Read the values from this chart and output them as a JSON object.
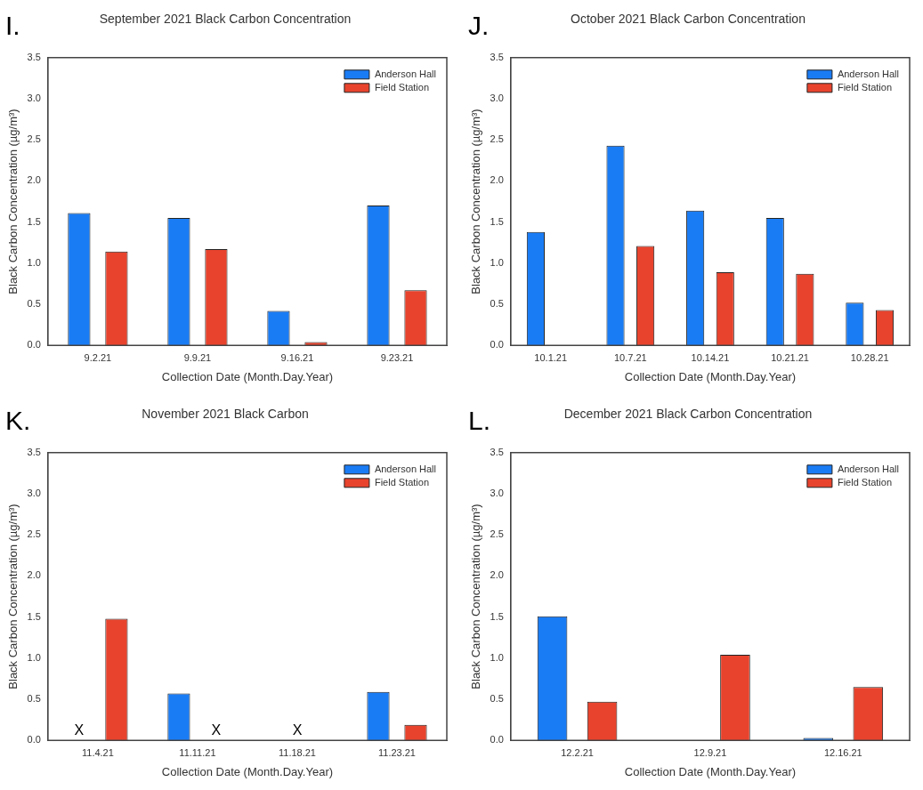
{
  "chart_data": [
    {
      "type": "bar",
      "title": "September 2021 Black Carbon Concentration",
      "xlabel": "Collection Date (Month.Day.Year)",
      "ylabel": "Black Carbon Concentration (µg/m³)",
      "annotations": [
        "I."
      ],
      "categories": [
        "9.2.21",
        "9.9.21",
        "9.16.21",
        "9.23.21"
      ],
      "series": [
        {
          "name": "Anderson Hall",
          "color": "#1a7cf5",
          "values": [
            1.61,
            1.55,
            0.42,
            1.7
          ]
        },
        {
          "name": "Field Station",
          "color": "#e8432d",
          "values": [
            1.14,
            1.17,
            0.04,
            0.67
          ]
        }
      ],
      "ylim": [
        0,
        3.5
      ],
      "yticks": [
        {
          "value": 0,
          "label": "0.0"
        },
        {
          "value": 0.5,
          "label": "0.5"
        },
        {
          "value": 1,
          "label": "1.0"
        },
        {
          "value": 1.5,
          "label": "1.5"
        },
        {
          "value": 2,
          "label": "2.0"
        },
        {
          "value": 2.5,
          "label": "2.5"
        },
        {
          "value": 3,
          "label": "3.0"
        },
        {
          "value": 3.5,
          "label": "3.5"
        }
      ],
      "legend": "top right"
    },
    {
      "type": "bar",
      "title": "October 2021 Black Carbon Concentration",
      "xlabel": "Collection Date (Month.Day.Year)",
      "ylabel": "Black Carbon Concentration (µg/m³)",
      "annotations": [
        "J."
      ],
      "categories": [
        "10.1.21",
        "10.7.21",
        "10.14.21",
        "10.21.21",
        "10.28.21"
      ],
      "series": [
        {
          "name": "Anderson Hall",
          "color": "#1a7cf5",
          "values": [
            1.38,
            2.43,
            1.64,
            1.55,
            0.52
          ]
        },
        {
          "name": "Field Station",
          "color": "#e8432d",
          "values": [
            null,
            1.21,
            0.89,
            0.87,
            0.43
          ]
        }
      ],
      "ylim": [
        0,
        3.5
      ],
      "yticks": [
        {
          "value": 0,
          "label": "0.0"
        },
        {
          "value": 0.5,
          "label": "0.5"
        },
        {
          "value": 1,
          "label": "1.0"
        },
        {
          "value": 1.5,
          "label": "1.5"
        },
        {
          "value": 2,
          "label": "2.0"
        },
        {
          "value": 2.5,
          "label": "2.5"
        },
        {
          "value": 3,
          "label": "3.0"
        },
        {
          "value": 3.5,
          "label": "3.5"
        }
      ],
      "legend": "top right"
    },
    {
      "type": "bar",
      "title": "November 2021 Black Carbon",
      "xlabel": "Collection Date (Month.Day.Year)",
      "ylabel": "Black Carbon Concentration (µg/m³)",
      "annotations": [
        "K.",
        "X",
        "X",
        "X"
      ],
      "categories": [
        "11.4.21",
        "11.11.21",
        "11.18.21",
        "11.23.21"
      ],
      "series": [
        {
          "name": "Anderson Hall",
          "color": "#1a7cf5",
          "values": [
            null,
            0.57,
            null,
            0.59
          ]
        },
        {
          "name": "Field Station",
          "color": "#e8432d",
          "values": [
            1.48,
            null,
            null,
            0.19
          ]
        }
      ],
      "ylim": [
        0,
        3.5
      ],
      "yticks": [
        {
          "value": 0,
          "label": "0.0"
        },
        {
          "value": 0.5,
          "label": "0.5"
        },
        {
          "value": 1,
          "label": "1.0"
        },
        {
          "value": 1.5,
          "label": "1.5"
        },
        {
          "value": 2,
          "label": "2.0"
        },
        {
          "value": 2.5,
          "label": "2.5"
        },
        {
          "value": 3,
          "label": "3.0"
        },
        {
          "value": 3.5,
          "label": "3.5"
        }
      ],
      "legend": "top right"
    },
    {
      "type": "bar",
      "title": "December 2021 Black Carbon Concentration",
      "xlabel": "Collection Date (Month.Day.Year)",
      "ylabel": "Black Carbon Concentration (µg/m³)",
      "annotations": [
        "L."
      ],
      "categories": [
        "12.2.21",
        "12.9.21",
        "12.16.21"
      ],
      "series": [
        {
          "name": "Anderson Hall",
          "color": "#1a7cf5",
          "values": [
            1.51,
            null,
            0.03
          ]
        },
        {
          "name": "Field Station",
          "color": "#e8432d",
          "values": [
            0.47,
            1.04,
            0.65
          ]
        }
      ],
      "ylim": [
        0,
        3.5
      ],
      "yticks": [
        {
          "value": 0,
          "label": "0.0"
        },
        {
          "value": 0.5,
          "label": "0.5"
        },
        {
          "value": 1,
          "label": "1.0"
        },
        {
          "value": 1.5,
          "label": "1.5"
        },
        {
          "value": 2,
          "label": "2.0"
        },
        {
          "value": 2.5,
          "label": "2.5"
        },
        {
          "value": 3,
          "label": "3.0"
        },
        {
          "value": 3.5,
          "label": "3.5"
        }
      ],
      "legend": "top right"
    }
  ]
}
